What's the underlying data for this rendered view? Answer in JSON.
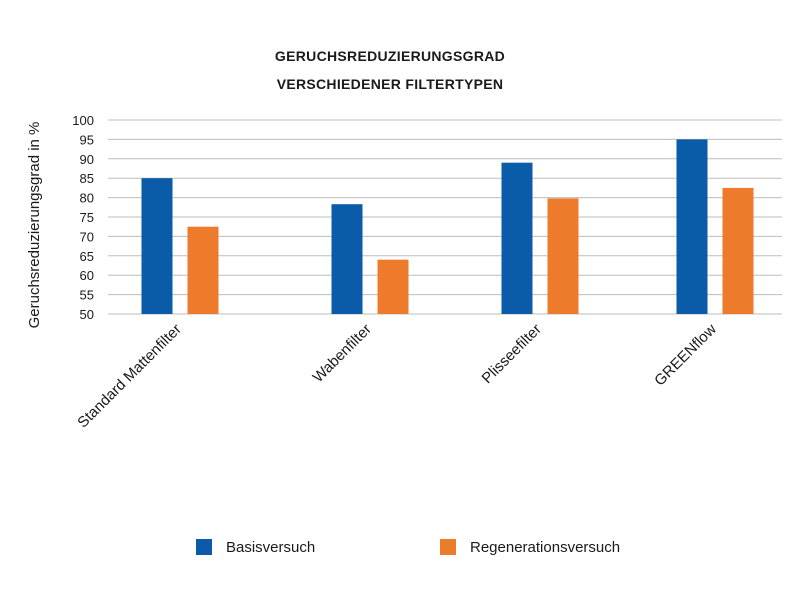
{
  "chart_data": {
    "type": "bar",
    "title_lines": [
      "GERUCHSREDUZIERUNGSGRAD",
      "VERSCHIEDENER FILTERTYPEN"
    ],
    "xlabel": "",
    "ylabel": "Geruchsreduzierungsgrad in %",
    "ylim": [
      50,
      100
    ],
    "yticks": [
      100,
      95,
      90,
      85,
      80,
      75,
      70,
      65,
      60,
      55,
      50
    ],
    "grid": true,
    "legend_position": "bottom",
    "categories": [
      "Standard Mattenfilter",
      "Wabenfilter",
      "Plisseefilter",
      "GREENflow"
    ],
    "series": [
      {
        "name": "Basisversuch",
        "color": "#0a5ba8",
        "values": [
          85,
          78.3,
          89,
          95
        ]
      },
      {
        "name": "Regenerationsversuch",
        "color": "#ee7a2c",
        "values": [
          72.5,
          64,
          79.8,
          82.5
        ]
      }
    ]
  }
}
